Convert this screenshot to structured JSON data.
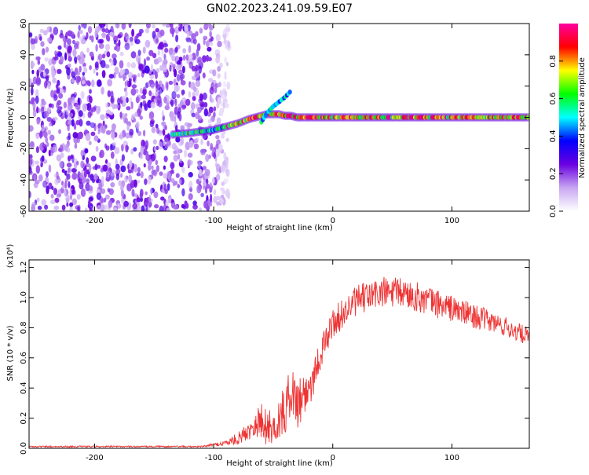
{
  "title": "GN02.2023.241.09.59.E07",
  "chart_data": [
    {
      "type": "heatmap",
      "xlabel": "Height of straight line (km)",
      "ylabel": "Frequency (Hz)",
      "xlim": [
        -255,
        165
      ],
      "ylim": [
        -60,
        60
      ],
      "x_ticks": [
        -200,
        -100,
        0,
        100
      ],
      "x_tick_labels": [
        "-200",
        "-100",
        "0",
        "100"
      ],
      "y_ticks": [
        -60,
        -40,
        -20,
        0,
        20,
        40,
        60
      ],
      "y_tick_labels": [
        "-60",
        "-40",
        "-20",
        "0",
        "20",
        "40",
        "60"
      ],
      "noise_region_x": [
        -255,
        -95
      ],
      "dispersion_track": {
        "x": [
          -135,
          -120,
          -110,
          -100,
          -90,
          -80,
          -70,
          -60,
          -55,
          -50,
          -45,
          -40,
          -35,
          -30,
          -20,
          -10,
          0,
          50,
          100,
          165
        ],
        "freq": [
          -11,
          -10,
          -9,
          -8,
          -6,
          -4,
          -1,
          1,
          2,
          2,
          2,
          1,
          1,
          0,
          0,
          0,
          0,
          0,
          0,
          0
        ]
      },
      "branch_track": {
        "x": [
          -60,
          -55,
          -50,
          -45,
          -40,
          -35
        ],
        "freq": [
          -3,
          3,
          7,
          10,
          13,
          17
        ]
      },
      "colorbar": {
        "label": "Normalized spectral amplitude",
        "range": [
          0,
          1
        ],
        "ticks": [
          0.0,
          0.2,
          0.4,
          0.6,
          0.8
        ],
        "tick_labels": [
          "0.0",
          "0.2",
          "0.4",
          "0.6",
          "0.8"
        ],
        "colors": [
          "#ffffff",
          "#c8a6f2",
          "#6a00e0",
          "#0000ff",
          "#00ffff",
          "#00ff00",
          "#ffff00",
          "#ff0000",
          "#ff00a0"
        ]
      }
    },
    {
      "type": "line",
      "xlabel": "Height of straight line (km)",
      "ylabel": "SNR (10 * v/v)",
      "multiplier_label": "(x10⁴)",
      "xlim": [
        -255,
        165
      ],
      "ylim": [
        0,
        1.25
      ],
      "x_ticks": [
        -200,
        -100,
        0,
        100
      ],
      "x_tick_labels": [
        "-200",
        "-100",
        "0",
        "100"
      ],
      "y_ticks": [
        0.0,
        0.2,
        0.4,
        0.6,
        0.8,
        1.0,
        1.2
      ],
      "y_tick_labels": [
        "0.0",
        "0.2",
        "0.4",
        "0.6",
        "0.8",
        "1.0",
        "1.2"
      ],
      "series": [
        {
          "color": "#ee3333",
          "envelope": {
            "x": [
              -255,
              -200,
              -150,
              -110,
              -100,
              -90,
              -80,
              -70,
              -65,
              -60,
              -50,
              -40,
              -35,
              -30,
              -25,
              -20,
              -10,
              0,
              20,
              40,
              60,
              80,
              100,
              120,
              140,
              165
            ],
            "base": [
              0.01,
              0.01,
              0.01,
              0.01,
              0.02,
              0.03,
              0.05,
              0.1,
              0.15,
              0.12,
              0.1,
              0.2,
              0.35,
              0.25,
              0.3,
              0.35,
              0.6,
              0.8,
              0.95,
              1.0,
              1.0,
              0.95,
              0.9,
              0.85,
              0.8,
              0.72
            ],
            "amp": [
              0.01,
              0.01,
              0.01,
              0.01,
              0.02,
              0.04,
              0.08,
              0.12,
              0.2,
              0.3,
              0.2,
              0.35,
              0.3,
              0.35,
              0.35,
              0.3,
              0.2,
              0.2,
              0.2,
              0.22,
              0.2,
              0.2,
              0.18,
              0.16,
              0.14,
              0.12
            ]
          }
        }
      ]
    }
  ]
}
